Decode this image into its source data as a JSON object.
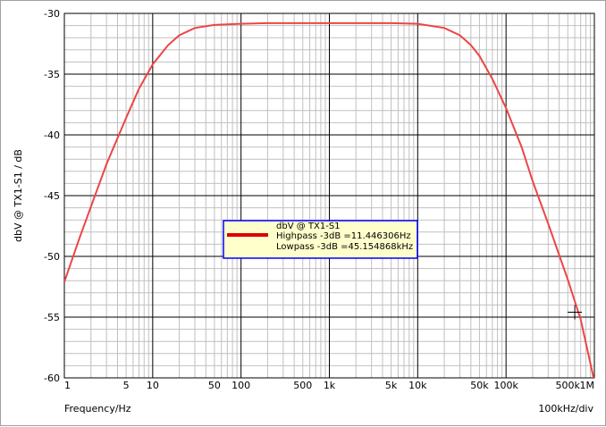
{
  "chart_data": {
    "type": "line",
    "x_scale": "log",
    "xlabel": "Frequency/Hz",
    "ylabel": "dbV @ TX1-S1 / dB",
    "x_div_label": "100kHz/div",
    "xlim": [
      1,
      1000000
    ],
    "ylim": [
      -60,
      -30
    ],
    "grid": true,
    "x_ticks": [
      {
        "v": 1,
        "label": "1"
      },
      {
        "v": 5,
        "label": "5"
      },
      {
        "v": 10,
        "label": "10"
      },
      {
        "v": 50,
        "label": "50"
      },
      {
        "v": 100,
        "label": "100"
      },
      {
        "v": 500,
        "label": "500"
      },
      {
        "v": 1000,
        "label": "1k"
      },
      {
        "v": 5000,
        "label": "5k"
      },
      {
        "v": 10000,
        "label": "10k"
      },
      {
        "v": 50000,
        "label": "50k"
      },
      {
        "v": 100000,
        "label": "100k"
      },
      {
        "v": 500000,
        "label": "500k"
      },
      {
        "v": 1000000,
        "label": "1M"
      }
    ],
    "y_ticks": [
      {
        "v": -30,
        "label": "-30"
      },
      {
        "v": -35,
        "label": "-35"
      },
      {
        "v": -40,
        "label": "-40"
      },
      {
        "v": -45,
        "label": "-45"
      },
      {
        "v": -50,
        "label": "-50"
      },
      {
        "v": -55,
        "label": "-55"
      },
      {
        "v": -60,
        "label": "-60"
      }
    ],
    "series": [
      {
        "name": "dbV @ TX1-S1",
        "color": "#ee4444",
        "x": [
          1,
          1.5,
          2,
          3,
          5,
          7,
          10,
          15,
          20,
          30,
          50,
          70,
          100,
          200,
          500,
          1000,
          2000,
          5000,
          10000,
          20000,
          30000,
          40000,
          50000,
          70000,
          100000,
          150000,
          200000,
          300000,
          500000,
          700000,
          1000000
        ],
        "y": [
          -52.1,
          -48.4,
          -45.9,
          -42.4,
          -38.6,
          -36.2,
          -34.2,
          -32.6,
          -31.8,
          -31.2,
          -30.95,
          -30.9,
          -30.85,
          -30.8,
          -30.8,
          -30.8,
          -30.8,
          -30.8,
          -30.85,
          -31.2,
          -31.8,
          -32.6,
          -33.5,
          -35.4,
          -37.8,
          -41.0,
          -43.8,
          -47.3,
          -51.9,
          -55.2,
          -60.3
        ]
      }
    ],
    "legend": {
      "title": "dbV @ TX1-S1",
      "lines": [
        "Highpass -3dB =11.446306Hz",
        "Lowpass -3dB =45.154868kHz"
      ],
      "background": "#ffffcc",
      "border": "#0000ff"
    },
    "cursor": {
      "x": 600000,
      "y": -54.6
    }
  }
}
